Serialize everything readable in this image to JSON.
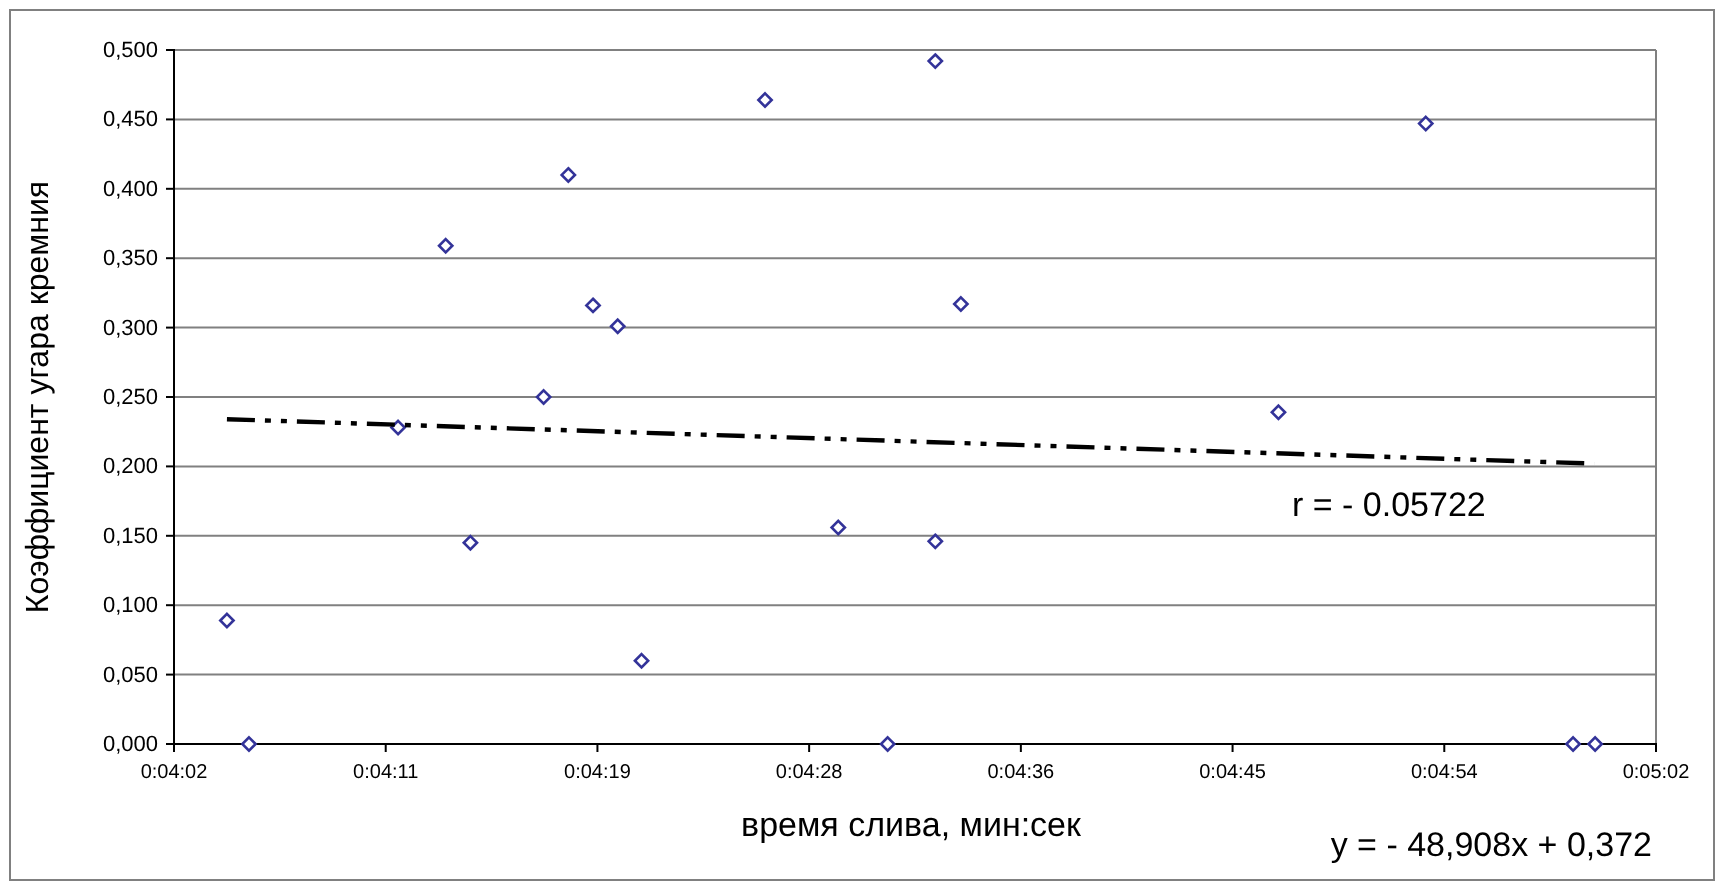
{
  "chart_data": {
    "type": "scatter",
    "xlabel": "время слива, мин:сек",
    "ylabel": "Коэффициент угара кремния",
    "xlim": [
      0.0672,
      0.084
    ],
    "xticks": [
      {
        "value": 0.0672,
        "label": "0:04:02"
      },
      {
        "value": 0.0696,
        "label": "0:04:11"
      },
      {
        "value": 0.072,
        "label": "0:04:19"
      },
      {
        "value": 0.0744,
        "label": "0:04:28"
      },
      {
        "value": 0.0768,
        "label": "0:04:36"
      },
      {
        "value": 0.0792,
        "label": "0:04:45"
      },
      {
        "value": 0.0816,
        "label": "0:04:54"
      },
      {
        "value": 0.084,
        "label": "0:05:02"
      }
    ],
    "ylim": [
      0,
      0.5
    ],
    "yticks": [
      {
        "value": 0,
        "label": "0,000"
      },
      {
        "value": 0.05,
        "label": "0,050"
      },
      {
        "value": 0.1,
        "label": "0,100"
      },
      {
        "value": 0.15,
        "label": "0,150"
      },
      {
        "value": 0.2,
        "label": "0,200"
      },
      {
        "value": 0.25,
        "label": "0,250"
      },
      {
        "value": 0.3,
        "label": "0,300"
      },
      {
        "value": 0.35,
        "label": "0,350"
      },
      {
        "value": 0.4,
        "label": "0,400"
      },
      {
        "value": 0.45,
        "label": "0,450"
      },
      {
        "value": 0.5,
        "label": "0,500"
      }
    ],
    "grid": "y",
    "annotations": [
      "r = - 0.05722",
      "y = - 48,908x + 0,372"
    ],
    "series": [
      {
        "color": "#333399",
        "marker": "diamond",
        "x": [
          0.0678,
          0.06805,
          0.06974,
          0.07028,
          0.07056,
          0.07139,
          0.07167,
          0.07195,
          0.07223,
          0.0725,
          0.0739,
          0.07473,
          0.07529,
          0.07583,
          0.07583,
          0.07612,
          0.07972,
          0.08139,
          0.08306,
          0.08331
        ],
        "values": [
          0.089,
          0,
          0.228,
          0.359,
          0.145,
          0.25,
          0.41,
          0.316,
          0.301,
          0.06,
          0.464,
          0.156,
          0,
          0.492,
          0.146,
          0.317,
          0.239,
          0.447,
          0,
          0
        ]
      },
      {
        "type": "line",
        "color": "#000000",
        "marker": "none",
        "x": [
          0.0678,
          0.0833
        ],
        "values": [
          0.234,
          0.202
        ],
        "line_style": "dashed"
      }
    ]
  }
}
